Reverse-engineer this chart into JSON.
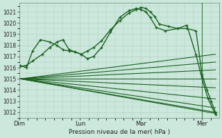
{
  "xlabel": "Pression niveau de la mer( hPa )",
  "bg_color": "#cce8dc",
  "plot_bg_color": "#cce8dc",
  "grid_color": "#aaccbb",
  "line_color": "#1a6020",
  "ylim": [
    1011.5,
    1021.8
  ],
  "yticks": [
    1012,
    1013,
    1014,
    1015,
    1016,
    1017,
    1018,
    1019,
    1020,
    1021
  ],
  "xtick_labels": [
    "Dim",
    "Lun",
    "Mar",
    "Mer"
  ],
  "xtick_positions": [
    0,
    1,
    2,
    3
  ],
  "xlim": [
    0.0,
    3.28
  ],
  "vline_x": 3.0,
  "lines": [
    {
      "x": [
        0.02,
        0.12,
        0.22,
        0.38,
        0.5,
        0.62,
        0.72,
        0.82,
        0.92,
        1.02,
        1.12,
        1.22,
        1.35,
        1.5,
        1.65,
        1.8,
        1.92,
        2.0,
        2.08,
        2.15,
        2.22,
        2.3,
        2.45,
        2.6,
        2.75,
        2.9,
        3.0,
        3.08,
        3.15,
        3.22
      ],
      "y": [
        1016.1,
        1016.2,
        1016.6,
        1017.2,
        1017.8,
        1018.3,
        1018.5,
        1017.6,
        1017.4,
        1017.2,
        1017.5,
        1017.8,
        1018.4,
        1019.4,
        1020.2,
        1020.9,
        1021.2,
        1021.4,
        1021.3,
        1021.0,
        1020.6,
        1019.9,
        1019.7,
        1019.5,
        1019.5,
        1019.3,
        1015.4,
        1014.0,
        1013.0,
        1012.0
      ],
      "style": "dotdash",
      "lw": 1.0
    },
    {
      "x": [
        0.02,
        0.12,
        0.22,
        0.35,
        0.5,
        0.62,
        0.72,
        0.82,
        0.92,
        1.02,
        1.12,
        1.22,
        1.35,
        1.5,
        1.65,
        1.8,
        1.92,
        2.0,
        2.08,
        2.15,
        2.25,
        2.4,
        2.6,
        2.75,
        2.9,
        3.0,
        3.1,
        3.22
      ],
      "y": [
        1016.2,
        1016.0,
        1017.5,
        1018.5,
        1018.3,
        1018.0,
        1017.6,
        1017.5,
        1017.4,
        1017.2,
        1016.8,
        1017.0,
        1017.8,
        1019.2,
        1020.5,
        1021.1,
        1021.3,
        1021.2,
        1021.0,
        1020.5,
        1019.6,
        1019.3,
        1019.5,
        1019.8,
        1017.2,
        1015.0,
        1013.2,
        1011.8
      ],
      "style": "dotdash",
      "lw": 1.0
    },
    {
      "x": [
        0.02,
        3.22
      ],
      "y": [
        1015.0,
        1017.2
      ],
      "style": "solid",
      "lw": 0.8
    },
    {
      "x": [
        0.02,
        3.22
      ],
      "y": [
        1015.0,
        1016.5
      ],
      "style": "solid",
      "lw": 0.8
    },
    {
      "x": [
        0.02,
        3.22
      ],
      "y": [
        1015.0,
        1015.8
      ],
      "style": "solid",
      "lw": 0.8
    },
    {
      "x": [
        0.02,
        3.22
      ],
      "y": [
        1015.0,
        1015.0
      ],
      "style": "solid",
      "lw": 0.8
    },
    {
      "x": [
        0.02,
        3.22
      ],
      "y": [
        1015.0,
        1014.2
      ],
      "style": "solid",
      "lw": 0.8
    },
    {
      "x": [
        0.02,
        3.22
      ],
      "y": [
        1015.0,
        1013.2
      ],
      "style": "solid",
      "lw": 0.8
    },
    {
      "x": [
        0.02,
        3.22
      ],
      "y": [
        1015.0,
        1012.4
      ],
      "style": "solid",
      "lw": 0.8
    },
    {
      "x": [
        0.02,
        3.22
      ],
      "y": [
        1015.0,
        1012.0
      ],
      "style": "solid",
      "lw": 0.8
    },
    {
      "x": [
        0.02,
        3.22
      ],
      "y": [
        1015.0,
        1011.9
      ],
      "style": "solid",
      "lw": 0.8
    }
  ]
}
